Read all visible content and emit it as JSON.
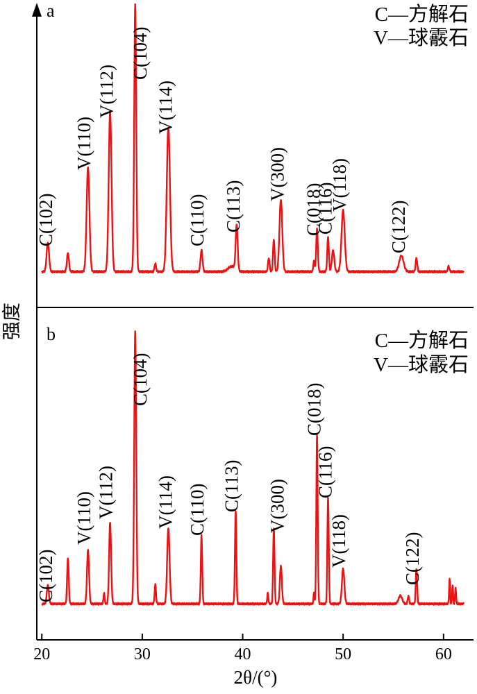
{
  "chart_data": [
    {
      "type": "line",
      "panel_label": "a",
      "legend": [
        "C—方解石",
        "V—球霰石"
      ],
      "xlabel": "2θ/(°)",
      "ylabel": "强度",
      "xlim": [
        19.5,
        62.5
      ],
      "x_ticks": [
        20,
        30,
        40,
        50,
        60
      ],
      "y_ticks": false,
      "grid": false,
      "legend_position": "top-right",
      "series": [
        {
          "color": "#ee1111",
          "baseline": 0.03,
          "noise": 0.004,
          "peaks": [
            {
              "x": 20.6,
              "y": 0.11,
              "w": 0.12,
              "label": "C(102)"
            },
            {
              "x": 22.6,
              "y": 0.07,
              "w": 0.1
            },
            {
              "x": 24.6,
              "y": 0.39,
              "w": 0.14,
              "label": "V(110)"
            },
            {
              "x": 26.8,
              "y": 0.6,
              "w": 0.14,
              "label": "V(112)"
            },
            {
              "x": 29.3,
              "y": 1.0,
              "w": 0.1,
              "label": "C(104)"
            },
            {
              "x": 31.3,
              "y": 0.03,
              "w": 0.08
            },
            {
              "x": 32.6,
              "y": 0.54,
              "w": 0.16,
              "label": "V(114)"
            },
            {
              "x": 35.9,
              "y": 0.08,
              "w": 0.1,
              "label": "C(110)"
            },
            {
              "x": 38.9,
              "y": 0.02,
              "w": 0.35
            },
            {
              "x": 39.4,
              "y": 0.17,
              "w": 0.1,
              "label": "C(113)"
            },
            {
              "x": 42.6,
              "y": 0.05,
              "w": 0.08
            },
            {
              "x": 43.1,
              "y": 0.12,
              "w": 0.08
            },
            {
              "x": 43.8,
              "y": 0.27,
              "w": 0.14,
              "label": "V(300)"
            },
            {
              "x": 47.1,
              "y": 0.04,
              "w": 0.07
            },
            {
              "x": 47.4,
              "y": 0.16,
              "w": 0.08,
              "label": "C(018)"
            },
            {
              "x": 48.5,
              "y": 0.13,
              "w": 0.08,
              "label": "C(116)"
            },
            {
              "x": 49.0,
              "y": 0.08,
              "w": 0.12
            },
            {
              "x": 50.0,
              "y": 0.23,
              "w": 0.16,
              "label": "V(118)"
            },
            {
              "x": 55.8,
              "y": 0.06,
              "w": 0.22,
              "label": "C(122)"
            },
            {
              "x": 57.3,
              "y": 0.05,
              "w": 0.08
            },
            {
              "x": 60.5,
              "y": 0.02,
              "w": 0.08
            }
          ]
        }
      ]
    },
    {
      "type": "line",
      "panel_label": "b",
      "legend": [
        "C—方解石",
        "V—球霰石"
      ],
      "xlabel": "2θ/(°)",
      "ylabel": "强度",
      "xlim": [
        19.5,
        62.5
      ],
      "x_ticks": [
        20,
        30,
        40,
        50,
        60
      ],
      "y_ticks": false,
      "grid": false,
      "legend_position": "top-right",
      "series": [
        {
          "color": "#ee1111",
          "baseline": 0.015,
          "noise": 0.004,
          "peaks": [
            {
              "x": 20.6,
              "y": 0.07,
              "w": 0.1,
              "label": "C(102)"
            },
            {
              "x": 22.6,
              "y": 0.17,
              "w": 0.08
            },
            {
              "x": 24.6,
              "y": 0.2,
              "w": 0.1,
              "label": "V(110)"
            },
            {
              "x": 26.2,
              "y": 0.04,
              "w": 0.06
            },
            {
              "x": 26.8,
              "y": 0.3,
              "w": 0.1,
              "label": "V(112)"
            },
            {
              "x": 29.3,
              "y": 1.0,
              "w": 0.1,
              "label": "C(104)"
            },
            {
              "x": 31.3,
              "y": 0.07,
              "w": 0.07
            },
            {
              "x": 32.6,
              "y": 0.28,
              "w": 0.12,
              "label": "V(114)"
            },
            {
              "x": 35.9,
              "y": 0.25,
              "w": 0.07,
              "label": "C(110)"
            },
            {
              "x": 39.3,
              "y": 0.34,
              "w": 0.07,
              "label": "C(113)"
            },
            {
              "x": 42.5,
              "y": 0.04,
              "w": 0.06
            },
            {
              "x": 43.1,
              "y": 0.28,
              "w": 0.07
            },
            {
              "x": 43.8,
              "y": 0.14,
              "w": 0.1,
              "label": "V(300)"
            },
            {
              "x": 47.1,
              "y": 0.04,
              "w": 0.05
            },
            {
              "x": 47.4,
              "y": 0.62,
              "w": 0.07,
              "label": "C(018)"
            },
            {
              "x": 48.5,
              "y": 0.39,
              "w": 0.07,
              "label": "C(116)"
            },
            {
              "x": 50.0,
              "y": 0.13,
              "w": 0.12,
              "label": "V(118)"
            },
            {
              "x": 55.7,
              "y": 0.03,
              "w": 0.18
            },
            {
              "x": 56.5,
              "y": 0.03,
              "w": 0.07
            },
            {
              "x": 57.3,
              "y": 0.13,
              "w": 0.07,
              "label": "C(122)"
            },
            {
              "x": 60.6,
              "y": 0.09,
              "w": 0.05
            },
            {
              "x": 60.9,
              "y": 0.07,
              "w": 0.05
            },
            {
              "x": 61.2,
              "y": 0.06,
              "w": 0.05
            }
          ]
        }
      ]
    }
  ]
}
